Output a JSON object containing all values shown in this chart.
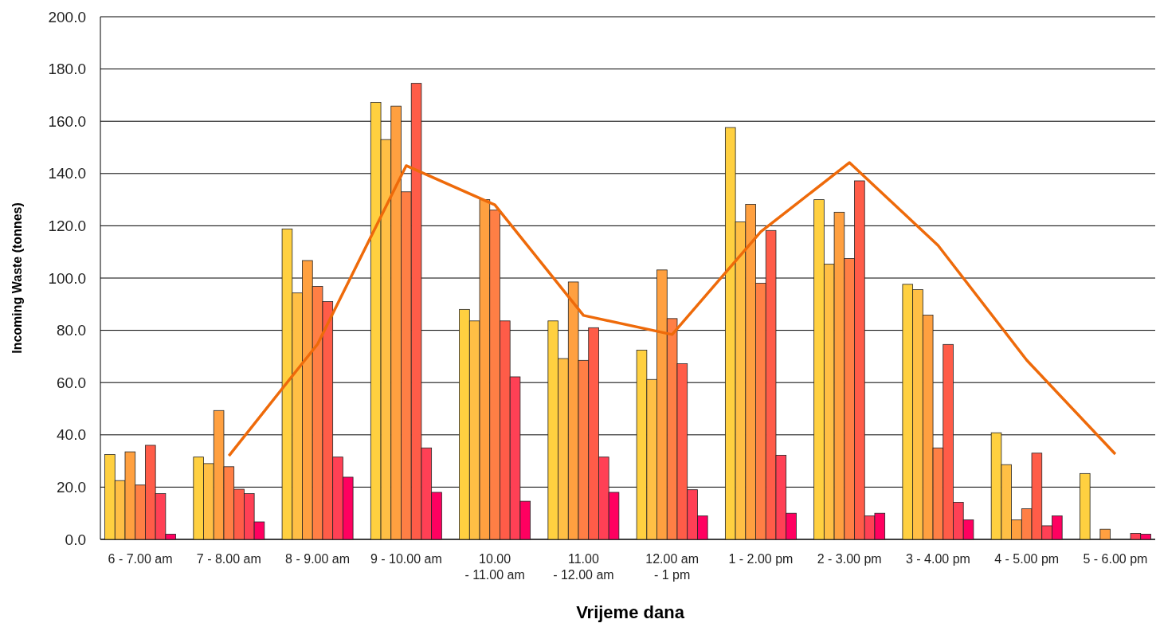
{
  "chart_data": {
    "type": "bar",
    "xlabel": "Vrijeme dana",
    "ylabel": "Incoming Waste (tonnes)",
    "categories": [
      "6 - 7.00 am",
      "7 - 8.00 am",
      "8 - 9.00 am",
      "9 - 10.00 am",
      "10.00\n- 11.00 am",
      "11.00\n- 12.00 am",
      "12.00 am\n- 1 pm",
      "1 - 2.00 pm",
      "2 - 3.00 pm",
      "3 - 4.00 pm",
      "4 - 5.00 pm",
      "5 - 6.00 pm"
    ],
    "series": [
      {
        "color": "#ffd040",
        "values": [
          32.5,
          31.5,
          118.8,
          167.2,
          88,
          83.6,
          72.4,
          157.6,
          130,
          97.6,
          40.8,
          25.2
        ]
      },
      {
        "color": "#ffbf45",
        "values": [
          22.5,
          29,
          94.3,
          153,
          83.6,
          69.2,
          61.2,
          121.5,
          105.3,
          95.6,
          28.6,
          null
        ]
      },
      {
        "color": "#ffa040",
        "values": [
          33.5,
          49.3,
          106.7,
          165.8,
          130,
          98.5,
          103.1,
          128.2,
          125.2,
          85.8,
          7.5,
          3.9
        ]
      },
      {
        "color": "#ff7f45",
        "values": [
          20.8,
          27.8,
          96.8,
          133,
          126,
          68.5,
          84.5,
          98,
          107.5,
          35,
          11.7,
          null
        ]
      },
      {
        "color": "#ff5c48",
        "values": [
          36,
          19.2,
          91,
          174.5,
          83.6,
          81,
          67.2,
          118.2,
          137.2,
          74.6,
          33,
          null
        ]
      },
      {
        "color": "#ff4055",
        "values": [
          17.5,
          17.5,
          31.5,
          35,
          62.2,
          31.5,
          19,
          32.2,
          9,
          14.2,
          5.2,
          2.3
        ]
      },
      {
        "color": "#ff0060",
        "values": [
          2,
          6.7,
          23.8,
          18,
          14.6,
          18,
          9,
          10,
          10,
          7.5,
          9,
          2
        ]
      },
      {
        "type": "line",
        "color": "#ee6a0a",
        "values": [
          null,
          32,
          74.7,
          143,
          128,
          85.7,
          78.4,
          117.7,
          144.2,
          112.5,
          68.6,
          32.6
        ]
      }
    ],
    "ylim": [
      0,
      200
    ],
    "yticks": [
      {
        "value": 0,
        "label": "0.0"
      },
      {
        "value": 20,
        "label": "20.0"
      },
      {
        "value": 40,
        "label": "40.0"
      },
      {
        "value": 60,
        "label": "60.0"
      },
      {
        "value": 80,
        "label": "80.0"
      },
      {
        "value": 100,
        "label": "100.0"
      },
      {
        "value": 120,
        "label": "120.0"
      },
      {
        "value": 140,
        "label": "140.0"
      },
      {
        "value": 160,
        "label": "160.0"
      },
      {
        "value": 180,
        "label": "180.0"
      },
      {
        "value": 200,
        "label": "200.0"
      }
    ],
    "grid": "y"
  }
}
